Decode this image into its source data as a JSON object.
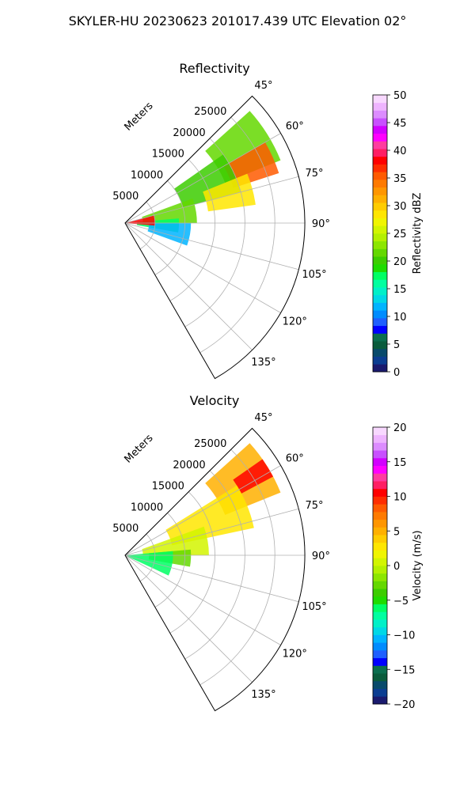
{
  "figure": {
    "suptitle": "SKYLER-HU  20230623  201017.439 UTC Elevation 02°"
  },
  "chart_data": [
    {
      "type": "heatmap",
      "subtype": "polar-sector",
      "title": "Reflectivity",
      "range_label": "Meters",
      "range_ticks": [
        5000,
        10000,
        15000,
        20000,
        25000
      ],
      "range_tick_labels": [
        "5000",
        "10000",
        "15000",
        "20000",
        "25000"
      ],
      "azimuth_ticks": [
        45,
        60,
        75,
        90,
        105,
        120,
        135
      ],
      "azimuth_tick_labels": [
        "45°",
        "60°",
        "75°",
        "90°",
        "105°",
        "120°",
        "135°"
      ],
      "azimuth_range": [
        45,
        150
      ],
      "range_max": 30000,
      "grid": true,
      "colorbar": {
        "label": "Reflectivity dBZ",
        "min": 0,
        "max": 50,
        "ticks": [
          0,
          5,
          10,
          15,
          20,
          25,
          30,
          35,
          40,
          45,
          50
        ],
        "tick_labels": [
          "0",
          "5",
          "10",
          "15",
          "20",
          "25",
          "30",
          "35",
          "40",
          "45",
          "50"
        ],
        "colors": [
          "#1a1a6e",
          "#0b3d91",
          "#084a6b",
          "#0a5c3c",
          "#0b6e4f",
          "#0000ff",
          "#1f5fff",
          "#008cff",
          "#00b4ff",
          "#00d8e6",
          "#00f0c8",
          "#00ffa0",
          "#00ff64",
          "#1edc00",
          "#3ccd00",
          "#64d800",
          "#8ce600",
          "#b4f000",
          "#d2f500",
          "#f0f500",
          "#ffe600",
          "#ffcc00",
          "#ffb000",
          "#ff9600",
          "#ff7a00",
          "#ff5a00",
          "#ff2d00",
          "#ff0000",
          "#ff1e64",
          "#ff3ca0",
          "#ff00ff",
          "#d200ff",
          "#c850ff",
          "#dc8cff",
          "#eeb4ff",
          "#f8d8ff"
        ]
      },
      "echo_regions": [
        {
          "az": [
            48,
            68
          ],
          "r": [
            18000,
            28000
          ],
          "level": 22
        },
        {
          "az": [
            60,
            72
          ],
          "r": [
            19000,
            27000
          ],
          "level": 35
        },
        {
          "az": [
            55,
            75
          ],
          "r": [
            10000,
            20000
          ],
          "level": 20
        },
        {
          "az": [
            68,
            82
          ],
          "r": [
            14000,
            22000
          ],
          "level": 28
        },
        {
          "az": [
            70,
            90
          ],
          "r": [
            3000,
            12000
          ],
          "level": 22
        },
        {
          "az": [
            85,
            100
          ],
          "r": [
            2000,
            9000
          ],
          "level": 18
        },
        {
          "az": [
            90,
            110
          ],
          "r": [
            4000,
            11000
          ],
          "level": 12
        },
        {
          "az": [
            75,
            95
          ],
          "r": [
            0,
            5000
          ],
          "level": 38
        }
      ]
    },
    {
      "type": "heatmap",
      "subtype": "polar-sector",
      "title": "Velocity",
      "range_label": "Meters",
      "range_ticks": [
        5000,
        10000,
        15000,
        20000,
        25000
      ],
      "range_tick_labels": [
        "5000",
        "10000",
        "15000",
        "20000",
        "25000"
      ],
      "azimuth_ticks": [
        45,
        60,
        75,
        90,
        105,
        120,
        135
      ],
      "azimuth_tick_labels": [
        "45°",
        "60°",
        "75°",
        "90°",
        "105°",
        "120°",
        "135°"
      ],
      "azimuth_range": [
        45,
        150
      ],
      "range_max": 30000,
      "grid": true,
      "colorbar": {
        "label": "Velocity (m/s)",
        "min": -20,
        "max": 20,
        "ticks": [
          -20,
          -15,
          -10,
          -5,
          0,
          5,
          10,
          15,
          20
        ],
        "tick_labels": [
          "−20",
          "−15",
          "−10",
          "−5",
          "0",
          "5",
          "10",
          "15",
          "20"
        ],
        "colors": [
          "#1a1a6e",
          "#0b3d91",
          "#084a6b",
          "#0a5c3c",
          "#0b6e4f",
          "#0000ff",
          "#1f5fff",
          "#008cff",
          "#00b4ff",
          "#00d8e6",
          "#00f0c8",
          "#00ffa0",
          "#00ff64",
          "#1edc00",
          "#3ccd00",
          "#64d800",
          "#8ce600",
          "#b4f000",
          "#d2f500",
          "#f0f500",
          "#ffe600",
          "#ffcc00",
          "#ffb000",
          "#ff9600",
          "#ff7a00",
          "#ff5a00",
          "#ff2d00",
          "#ff0000",
          "#ff1e64",
          "#ff3ca0",
          "#ff00ff",
          "#d200ff",
          "#c850ff",
          "#dc8cff",
          "#eeb4ff",
          "#f8d8ff"
        ]
      },
      "echo_regions": [
        {
          "az": [
            48,
            68
          ],
          "r": [
            18000,
            28000
          ],
          "level": 5
        },
        {
          "az": [
            55,
            62
          ],
          "r": [
            22000,
            28000
          ],
          "level": 10
        },
        {
          "az": [
            58,
            78
          ],
          "r": [
            8000,
            22000
          ],
          "level": 3
        },
        {
          "az": [
            70,
            90
          ],
          "r": [
            3000,
            14000
          ],
          "level": 1
        },
        {
          "az": [
            85,
            100
          ],
          "r": [
            4000,
            11000
          ],
          "level": -3
        },
        {
          "az": [
            85,
            115
          ],
          "r": [
            0,
            8000
          ],
          "level": -6
        }
      ]
    }
  ]
}
